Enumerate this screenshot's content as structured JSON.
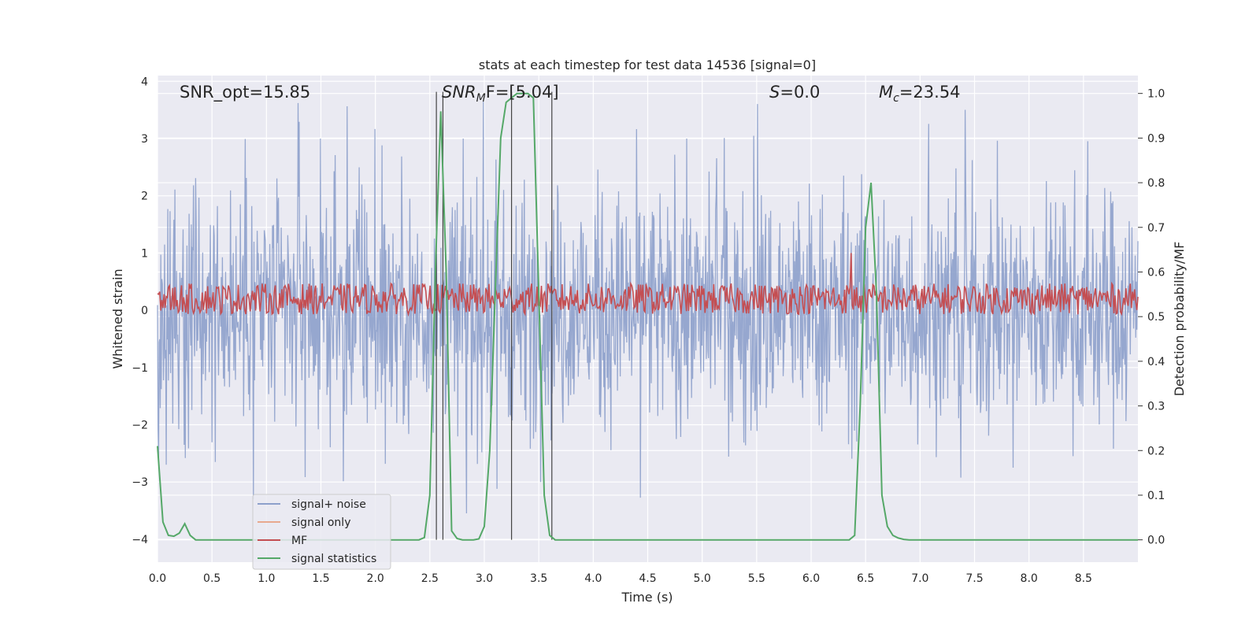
{
  "chart_data": {
    "type": "line",
    "title": "stats at each timestep for test data 14536 [signal=0]",
    "xlabel": "Time (s)",
    "ylabel": "Whitened strain",
    "y2label": "Detection probability/MF",
    "xlim": [
      0,
      9.0
    ],
    "ylim": [
      -4.4,
      4.1
    ],
    "y2lim": [
      -0.05,
      1.04
    ],
    "x_ticks": [
      "0.0",
      "0.5",
      "1.0",
      "1.5",
      "2.0",
      "2.5",
      "3.0",
      "3.5",
      "4.0",
      "4.5",
      "5.0",
      "5.5",
      "6.0",
      "6.5",
      "7.0",
      "7.5",
      "8.0",
      "8.5"
    ],
    "y_ticks": [
      "4",
      "3",
      "2",
      "1",
      "0",
      "−1",
      "−2",
      "−3",
      "−4"
    ],
    "y2_ticks": [
      "1.0",
      "0.9",
      "0.8",
      "0.7",
      "0.6",
      "0.5",
      "0.4",
      "0.3",
      "0.2",
      "0.1",
      "0.0"
    ],
    "grid": true,
    "legend_position": "lower-left",
    "annotations": {
      "snr_opt": "SNR_opt=15.85",
      "snr_mf_main": "SNR",
      "snr_mf_sub": "M",
      "snr_mf_rest": "F=[5.04]",
      "s_italic": "S",
      "s_rest": "=0.0",
      "mc_main": "M",
      "mc_sub": "c",
      "mc_rest": "=23.54"
    },
    "vertical_lines_x": [
      2.56,
      2.62,
      3.25,
      3.62
    ],
    "series": [
      {
        "name": "signal+ noise",
        "color": "#8da0cb",
        "axis": "left",
        "description_values": {
          "typical_abs_max": 3.0,
          "peak": 3.7,
          "trough": -3.5
        }
      },
      {
        "name": "signal only",
        "color": "#e8a98e",
        "axis": "left",
        "values": []
      },
      {
        "name": "MF",
        "color": "#c44e52",
        "axis": "left",
        "description_values": {
          "center": 0.2,
          "amplitude": 0.3,
          "spike_x": 6.37,
          "spike_y": 1.0
        }
      },
      {
        "name": "signal statistics",
        "color": "#55a868",
        "axis": "right",
        "x": [
          0.0,
          0.05,
          0.1,
          0.15,
          0.2,
          0.25,
          0.3,
          0.35,
          0.4,
          0.45,
          0.5,
          2.4,
          2.45,
          2.5,
          2.55,
          2.6,
          2.65,
          2.7,
          2.75,
          2.8,
          2.85,
          2.9,
          2.95,
          3.0,
          3.05,
          3.1,
          3.15,
          3.2,
          3.25,
          3.3,
          3.35,
          3.4,
          3.45,
          3.5,
          3.55,
          3.6,
          3.65,
          3.7,
          3.75,
          3.8,
          6.35,
          6.4,
          6.45,
          6.5,
          6.55,
          6.6,
          6.65,
          6.7,
          6.75,
          6.8,
          6.85,
          6.9,
          6.95,
          7.0,
          9.0
        ],
        "y": [
          0.21,
          0.04,
          0.01,
          0.008,
          0.015,
          0.036,
          0.01,
          0.0,
          0.0,
          0.0,
          0.0,
          0.0,
          0.005,
          0.1,
          0.6,
          0.96,
          0.6,
          0.02,
          0.003,
          0.0,
          0.0,
          0.0,
          0.002,
          0.03,
          0.2,
          0.55,
          0.9,
          0.98,
          0.99,
          1.0,
          1.0,
          1.0,
          0.99,
          0.55,
          0.1,
          0.01,
          0.0,
          0.0,
          0.0,
          0.0,
          0.0,
          0.01,
          0.3,
          0.7,
          0.8,
          0.55,
          0.1,
          0.03,
          0.01,
          0.004,
          0.001,
          0.0,
          0.0,
          0.0,
          0.0
        ]
      }
    ]
  }
}
